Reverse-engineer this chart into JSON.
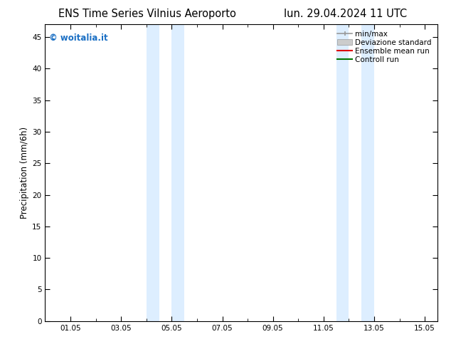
{
  "title_left": "ENS Time Series Vilnius Aeroporto",
  "title_right": "lun. 29.04.2024 11 UTC",
  "ylabel": "Precipitation (mm/6h)",
  "watermark": "© woitalia.it",
  "watermark_color": "#1a6fc4",
  "ylim": [
    0,
    47
  ],
  "yticks": [
    0,
    5,
    10,
    15,
    20,
    25,
    30,
    35,
    40,
    45
  ],
  "xtick_labels": [
    "01.05",
    "03.05",
    "05.05",
    "07.05",
    "09.05",
    "11.05",
    "13.05",
    "15.05"
  ],
  "xtick_positions": [
    1.0,
    3.0,
    5.0,
    7.0,
    9.0,
    11.0,
    13.0,
    15.0
  ],
  "xmin": 0.0,
  "xmax": 15.5,
  "shaded_regions": [
    [
      4.0,
      4.5
    ],
    [
      5.0,
      5.5
    ],
    [
      11.5,
      12.0
    ],
    [
      12.5,
      13.0
    ]
  ],
  "shade_color": "#ddeeff",
  "background_color": "#ffffff",
  "legend_entries": [
    {
      "label": "min/max",
      "color": "#999999",
      "lw": 1.2,
      "style": "minmax"
    },
    {
      "label": "Deviazione standard",
      "color": "#cccccc",
      "lw": 5,
      "style": "std"
    },
    {
      "label": "Ensemble mean run",
      "color": "#dd0000",
      "lw": 1.5,
      "style": "line"
    },
    {
      "label": "Controll run",
      "color": "#007700",
      "lw": 1.5,
      "style": "line"
    }
  ],
  "title_fontsize": 10.5,
  "tick_fontsize": 7.5,
  "ylabel_fontsize": 8.5,
  "legend_fontsize": 7.5,
  "watermark_fontsize": 8.5
}
